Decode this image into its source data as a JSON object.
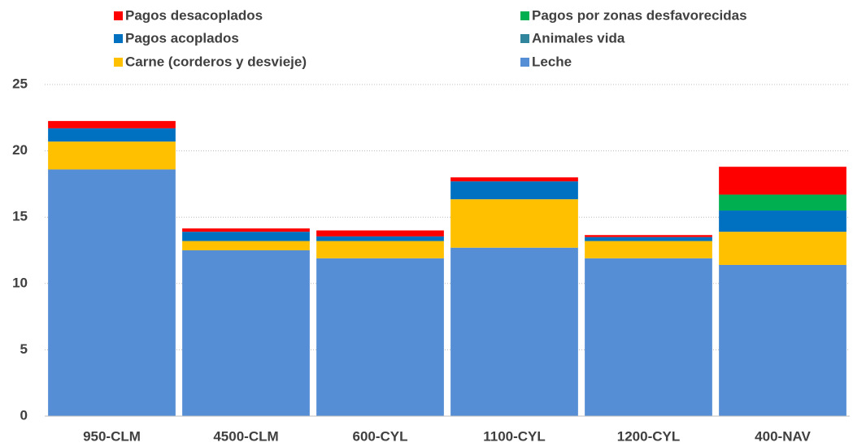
{
  "chart_data": {
    "type": "stacked_bar",
    "categories": [
      "950-CLM",
      "4500-CLM",
      "600-CYL",
      "1100-CYL",
      "1200-CYL",
      "400-NAV"
    ],
    "series": [
      {
        "name": "Leche",
        "color": "#558ed5",
        "values": [
          18.6,
          12.5,
          11.9,
          12.7,
          11.9,
          11.4
        ]
      },
      {
        "name": "Carne (corderos y desvieje)",
        "color": "#ffc000",
        "values": [
          2.1,
          0.7,
          1.3,
          3.65,
          1.3,
          2.5
        ]
      },
      {
        "name": "Animales vida",
        "color": "#31859c",
        "values": [
          0,
          0,
          0,
          0,
          0,
          0
        ]
      },
      {
        "name": "Pagos acoplados",
        "color": "#0070c0",
        "values": [
          1.0,
          0.7,
          0.35,
          1.35,
          0.3,
          1.6
        ]
      },
      {
        "name": "Pagos por zonas desfavorecidas",
        "color": "#00b050",
        "values": [
          0,
          0,
          0,
          0,
          0,
          1.2
        ]
      },
      {
        "name": "Pagos desacoplados",
        "color": "#ff0000",
        "values": [
          0.55,
          0.25,
          0.45,
          0.3,
          0.15,
          2.1
        ]
      }
    ],
    "ylim": [
      0,
      25
    ],
    "yticks": [
      0,
      5,
      10,
      15,
      20,
      25
    ],
    "grid": true,
    "legend": "top"
  }
}
